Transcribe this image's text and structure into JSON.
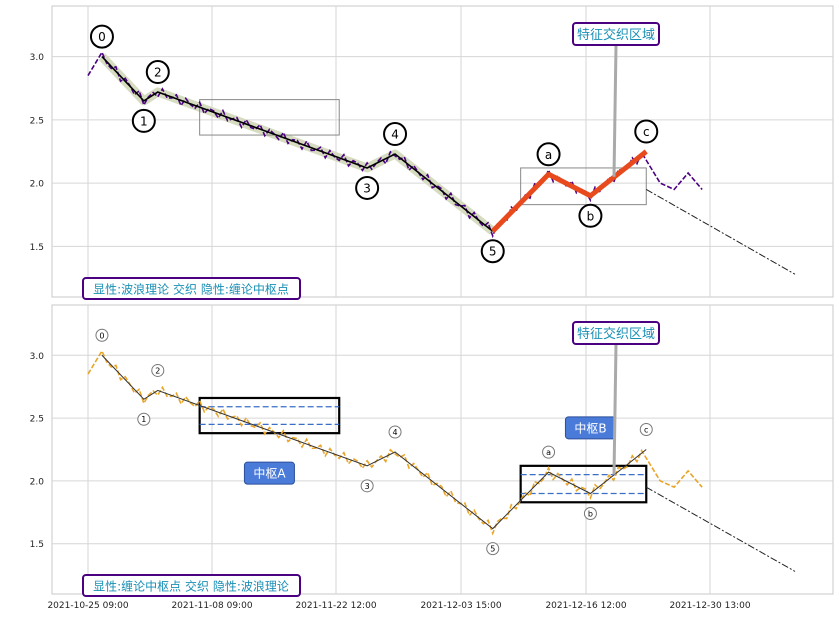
{
  "chart_data": [
    {
      "type": "line",
      "panel": "top",
      "ylim": [
        1.1,
        3.4
      ],
      "yticks": [
        "3.0",
        "2.5",
        "2.0",
        "1.5"
      ],
      "grid": true,
      "caption": "显性:波浪理论 交织 隐性:缠论中枢点",
      "annotation": "特征交织区域",
      "colors": {
        "price": "#4b0082",
        "wave": "#000000",
        "highlight": "#d6dcc0",
        "correction": "#e8491d"
      },
      "wave_points": [
        {
          "label": "0",
          "x": 1,
          "y": 3.0
        },
        {
          "label": "1",
          "x": 4,
          "y": 2.65
        },
        {
          "label": "2",
          "x": 5,
          "y": 2.72
        },
        {
          "label": "3",
          "x": 20,
          "y": 2.12
        },
        {
          "label": "4",
          "x": 22,
          "y": 2.23
        },
        {
          "label": "5",
          "x": 29,
          "y": 1.62
        },
        {
          "label": "a",
          "x": 33,
          "y": 2.07
        },
        {
          "label": "b",
          "x": 36,
          "y": 1.9
        },
        {
          "label": "c",
          "x": 40,
          "y": 2.25
        }
      ]
    },
    {
      "type": "line",
      "panel": "bottom",
      "ylim": [
        1.1,
        3.4
      ],
      "yticks": [
        "3.0",
        "2.5",
        "2.0",
        "1.5"
      ],
      "grid": true,
      "caption": "显性:缠论中枢点 交织 隐性:波浪理论",
      "annotation": "特征交织区域",
      "zhongshu": [
        {
          "label": "中枢A",
          "x0": 8,
          "x1": 18,
          "ylow": 2.38,
          "yhigh": 2.66
        },
        {
          "label": "中枢B",
          "x0": 31,
          "x1": 40,
          "ylow": 1.83,
          "yhigh": 2.12
        }
      ],
      "colors": {
        "price": "#e8a52a",
        "box": "#000000",
        "label_bg": "#4a7bd8"
      },
      "wave_points": [
        {
          "label": "0",
          "x": 1,
          "y": 3.0
        },
        {
          "label": "1",
          "x": 4,
          "y": 2.65
        },
        {
          "label": "2",
          "x": 5,
          "y": 2.72
        },
        {
          "label": "3",
          "x": 20,
          "y": 2.12
        },
        {
          "label": "4",
          "x": 22,
          "y": 2.23
        },
        {
          "label": "5",
          "x": 29,
          "y": 1.62
        },
        {
          "label": "a",
          "x": 33,
          "y": 2.07
        },
        {
          "label": "b",
          "x": 36,
          "y": 1.9
        },
        {
          "label": "c",
          "x": 40,
          "y": 2.25
        }
      ]
    }
  ],
  "xaxis": {
    "ticks": [
      "2021-10-25 09:00",
      "2021-11-08 09:00",
      "2021-11-22 12:00",
      "2021-12-03 15:00",
      "2021-12-16 12:00",
      "2021-12-30 13:00"
    ]
  }
}
